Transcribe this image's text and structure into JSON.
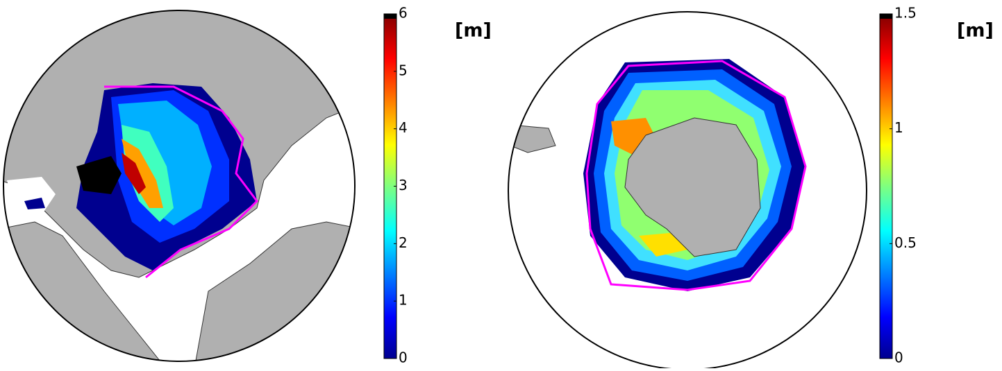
{
  "maps": [
    {
      "colorbar": {
        "lim": [
          0,
          6
        ],
        "ticks": [
          0,
          1,
          2,
          3,
          4,
          5,
          6
        ],
        "unit": "[m]"
      }
    },
    {
      "colorbar": {
        "lim": [
          0,
          1.5
        ],
        "ticks": [
          0,
          0.5,
          1,
          1.5
        ],
        "unit": "[m]"
      }
    }
  ]
}
